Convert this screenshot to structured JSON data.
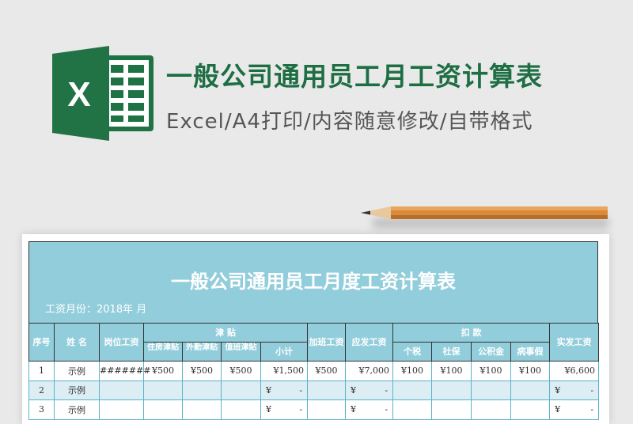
{
  "header": {
    "title": "一般公司通用员工月工资计算表",
    "subtitle": "Excel/A4打印/内容随意修改/自带格式",
    "logo_letter": "X"
  },
  "colors": {
    "title": "#1e6e44",
    "band": "#92cddb",
    "alt_row": "#dcedf3",
    "excel_green": "#1f7244"
  },
  "sheet": {
    "title": "一般公司通用员工月度工资计算表",
    "month_label": "工资月份：2018年  月",
    "headers": {
      "no": "序号",
      "name": "姓 名",
      "base": "岗位工资",
      "allowance": "津  贴",
      "housing": "住房津贴",
      "field": "外勤津贴",
      "duty": "值班津贴",
      "subtotal": "小计",
      "overtime": "加班工资",
      "gross": "应发工资",
      "deduct": "扣    款",
      "tax": "个税",
      "social": "社保",
      "fund": "公积金",
      "leave": "病事假",
      "net": "实发工资"
    },
    "rows": [
      {
        "no": "1",
        "name": "示例",
        "base": "#######",
        "housing": "¥500",
        "field": "¥500",
        "duty": "¥500",
        "subtotal": "¥1,500",
        "overtime": "¥500",
        "gross": "¥7,000",
        "tax": "¥100",
        "social": "¥100",
        "fund": "¥100",
        "leave": "¥100",
        "net": "¥6,600"
      },
      {
        "no": "2",
        "name": "示例",
        "subtotal_sym": "¥",
        "subtotal_val": "-",
        "gross_sym": "¥",
        "gross_val": "-",
        "net_sym": "¥",
        "net_val": "-"
      },
      {
        "no": "3",
        "name": "示例",
        "subtotal_sym": "¥",
        "subtotal_val": "-",
        "gross_sym": "¥",
        "gross_val": "-",
        "net_sym": "¥",
        "net_val": "-"
      }
    ]
  }
}
